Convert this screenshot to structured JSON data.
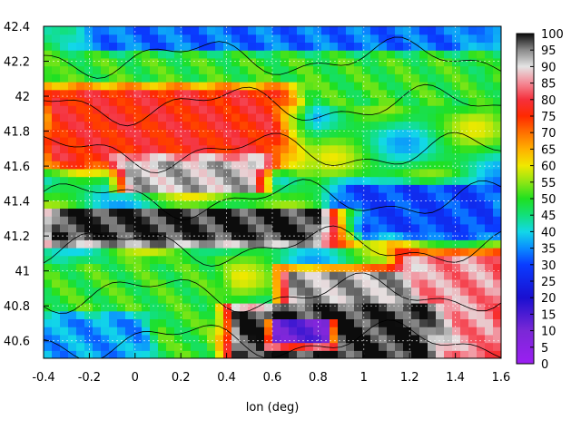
{
  "chart_data": {
    "type": "heatmap",
    "title": "",
    "xlabel": "lon (deg)",
    "ylabel": "",
    "xlim": [
      -0.4,
      1.6
    ],
    "ylim": [
      40.5,
      42.4
    ],
    "x_ticks": [
      "-0.4",
      "-0.2",
      "0",
      "0.2",
      "0.4",
      "0.6",
      "0.8",
      "1",
      "1.2",
      "1.4",
      "1.6"
    ],
    "y_ticks": [
      "40.6",
      "40.8",
      "41",
      "41.2",
      "41.4",
      "41.6",
      "41.8",
      "42",
      "42.2",
      "42.4"
    ],
    "grid": true,
    "contours": true,
    "colorbar": {
      "range": [
        0,
        100
      ],
      "ticks": [
        "0",
        "5",
        "10",
        "15",
        "20",
        "25",
        "30",
        "35",
        "40",
        "45",
        "50",
        "55",
        "60",
        "65",
        "70",
        "75",
        "80",
        "85",
        "90",
        "95",
        "100"
      ],
      "colors": [
        {
          "v": 0,
          "c": "#9b1ff2"
        },
        {
          "v": 10,
          "c": "#7a28d6"
        },
        {
          "v": 20,
          "c": "#1a0fd0"
        },
        {
          "v": 30,
          "c": "#0a3cff"
        },
        {
          "v": 35,
          "c": "#0a8cff"
        },
        {
          "v": 40,
          "c": "#12d8e8"
        },
        {
          "v": 45,
          "c": "#12e07a"
        },
        {
          "v": 50,
          "c": "#20e020"
        },
        {
          "v": 55,
          "c": "#8fe614"
        },
        {
          "v": 60,
          "c": "#f0e800"
        },
        {
          "v": 65,
          "c": "#ffb000"
        },
        {
          "v": 70,
          "c": "#ff7000"
        },
        {
          "v": 75,
          "c": "#ff2a00"
        },
        {
          "v": 80,
          "c": "#f5303c"
        },
        {
          "v": 85,
          "c": "#f48a96"
        },
        {
          "v": 90,
          "c": "#e4e4e4"
        },
        {
          "v": 95,
          "c": "#8a8a8a"
        },
        {
          "v": 100,
          "c": "#0c0c0c"
        }
      ]
    },
    "regions": [
      {
        "name": "base-field",
        "value": 48
      },
      {
        "name": "north-blue-band",
        "lon": [
          -0.2,
          1.5
        ],
        "lat": [
          42.15,
          42.4
        ],
        "value": 33
      },
      {
        "name": "north-green-belt",
        "lon": [
          -0.35,
          1.55
        ],
        "lat": [
          41.95,
          42.25
        ],
        "value": 50
      },
      {
        "name": "east-blue",
        "lon": [
          0.9,
          1.6
        ],
        "lat": [
          41.2,
          41.5
        ],
        "value": 30
      },
      {
        "name": "west-red-band",
        "lon": [
          -0.4,
          0.65
        ],
        "lat": [
          41.6,
          42.05
        ],
        "value": 77
      },
      {
        "name": "pyrenees-gray-ridge",
        "lon": [
          -0.05,
          0.55
        ],
        "lat": [
          41.45,
          41.65
        ],
        "value": 92
      },
      {
        "name": "ebro-black-band",
        "lon": [
          -0.4,
          0.85
        ],
        "lat": [
          41.15,
          41.35
        ],
        "value": 99
      },
      {
        "name": "southeast-pink-block",
        "lon": [
          1.15,
          1.6
        ],
        "lat": [
          40.5,
          41.1
        ],
        "value": 85
      },
      {
        "name": "southeast-gray-block",
        "lon": [
          0.65,
          1.2
        ],
        "lat": [
          40.55,
          41.0
        ],
        "value": 93
      },
      {
        "name": "south-black-block",
        "lon": [
          0.4,
          1.3
        ],
        "lat": [
          40.5,
          40.8
        ],
        "value": 99
      },
      {
        "name": "southwest-green",
        "lon": [
          -0.4,
          0.35
        ],
        "lat": [
          40.5,
          41.05
        ],
        "value": 50
      },
      {
        "name": "southwest-blue",
        "lon": [
          -0.4,
          0.05
        ],
        "lat": [
          40.5,
          40.75
        ],
        "value": 36
      },
      {
        "name": "purple-patch",
        "lon": [
          0.6,
          0.85
        ],
        "lat": [
          40.58,
          40.72
        ],
        "value": 12
      }
    ]
  }
}
